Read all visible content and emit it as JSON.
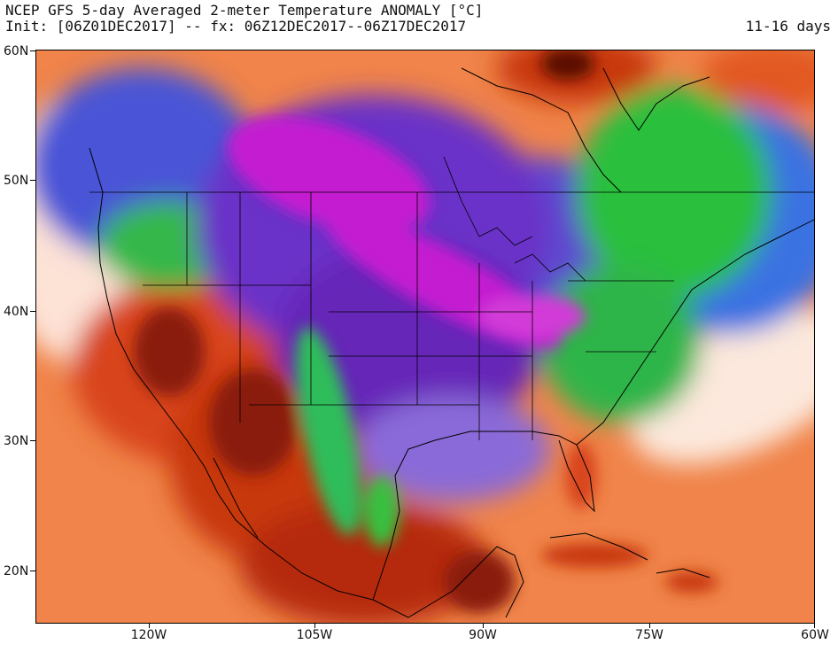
{
  "header": {
    "title": "NCEP GFS 5-day Averaged 2-meter Temperature ANOMALY [°C]",
    "init_line": "Init: [06Z01DEC2017] -- fx: 06Z12DEC2017--06Z17DEC2017",
    "range": "11-16 days"
  },
  "axes": {
    "lat_labels": [
      "60N",
      "50N",
      "40N",
      "30N",
      "20N"
    ],
    "lon_labels": [
      "120W",
      "105W",
      "90W",
      "75W",
      "60W"
    ]
  },
  "colors": {
    "warm_dark": "#7a1a08",
    "warm_mid": "#d43d12",
    "warm_light": "#f07a3e",
    "neutral_light": "#fde7de",
    "cool_green": "#28c23c",
    "cool_blue": "#2f5ed8",
    "cold_purple": "#6a30c8",
    "cold_magenta": "#c41fd0",
    "land_outline": "#000000"
  },
  "icons": [
    "map-anomaly-field",
    "coastline-outline",
    "state-borders"
  ]
}
